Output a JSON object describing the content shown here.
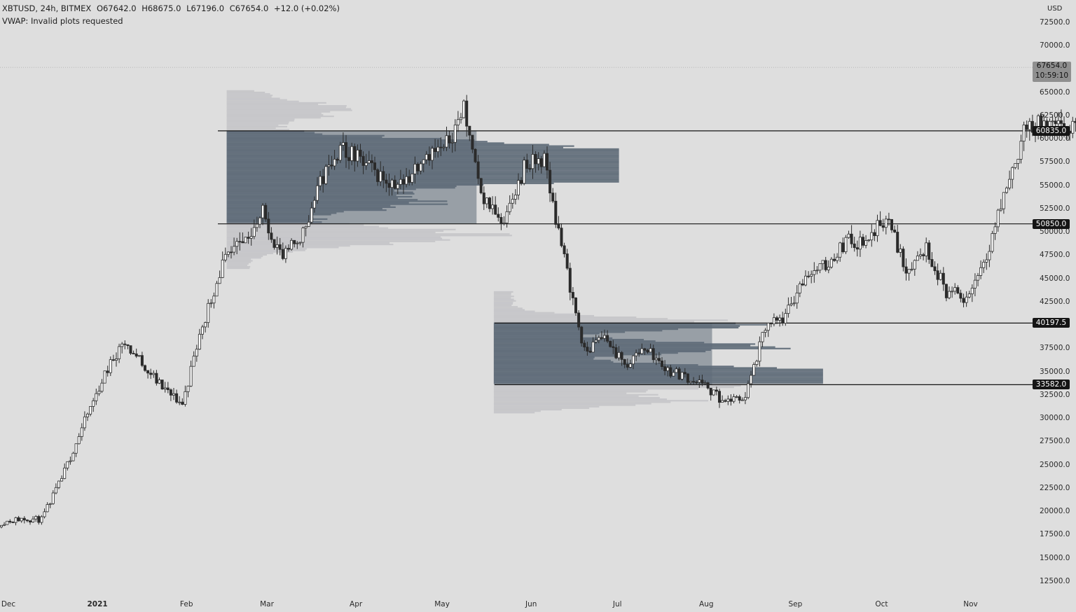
{
  "header": {
    "symbol": "XBTUSD, 24h, BITMEX",
    "open": "O67642.0",
    "high": "H68675.0",
    "low": "L67196.0",
    "close": "C67654.0",
    "change": "+12.0 (+0.02%)",
    "indicator_line": "VWAP: Invalid plots requested"
  },
  "axis": {
    "currency": "USD",
    "y_ticks": [
      "72500.0",
      "70000.0",
      "65000.0",
      "62500.0",
      "60000.0",
      "57500.0",
      "55000.0",
      "52500.0",
      "50000.0",
      "47500.0",
      "45000.0",
      "42500.0",
      "37500.0",
      "35000.0",
      "32500.0",
      "30000.0",
      "27500.0",
      "25000.0",
      "22500.0",
      "20000.0",
      "17500.0",
      "15000.0",
      "12500.0"
    ],
    "x_ticks": [
      {
        "label": "Dec",
        "bold": false
      },
      {
        "label": "2021",
        "bold": true
      },
      {
        "label": "Feb",
        "bold": false
      },
      {
        "label": "Mar",
        "bold": false
      },
      {
        "label": "Apr",
        "bold": false
      },
      {
        "label": "May",
        "bold": false
      },
      {
        "label": "Jun",
        "bold": false
      },
      {
        "label": "Jul",
        "bold": false
      },
      {
        "label": "Aug",
        "bold": false
      },
      {
        "label": "Sep",
        "bold": false
      },
      {
        "label": "Oct",
        "bold": false
      },
      {
        "label": "Nov",
        "bold": false
      }
    ]
  },
  "last_price": {
    "price": "67654.0",
    "countdown": "10:59:10"
  },
  "levels": [
    "60835.0",
    "50850.0",
    "40197.5",
    "33582.0"
  ],
  "colors": {
    "background": "#dedede",
    "candle_up": "#ffffff",
    "candle_down": "#2b2b2b",
    "value_area": "#5f6c78",
    "profile_light": "#c4c4c8",
    "level_line": "#141414",
    "badge": "#151515"
  },
  "chart_data": {
    "type": "candlestick",
    "title": "XBTUSD, 24h, BITMEX",
    "timeframe": "24h",
    "x_range": [
      "2020-12-01",
      "2021-11-09"
    ],
    "ylim": [
      11000,
      75000
    ],
    "closes_weekly": [
      18800,
      19200,
      19100,
      23500,
      28900,
      34000,
      38200,
      36000,
      33200,
      31500,
      40000,
      46500,
      48800,
      52000,
      47000,
      50000,
      56000,
      59000,
      57300,
      55800,
      55000,
      58500,
      58700,
      63200,
      53600,
      50500,
      57000,
      57800,
      47000,
      37000,
      38800,
      35500,
      37700,
      35300,
      34500,
      33400,
      31700,
      32300,
      39700,
      40800,
      45500,
      46300,
      49000,
      48900,
      51700,
      46000,
      48300,
      43600,
      42800,
      47700,
      54900,
      61500,
      61400,
      60800,
      61300,
      63200,
      67654
    ],
    "last_candle": {
      "open": 67642.0,
      "high": 68675.0,
      "low": 67196.0,
      "close": 67654.0
    },
    "horizontal_levels": [
      60835.0,
      50850.0,
      40197.5,
      33582.0
    ],
    "volume_profiles": [
      {
        "from": "2021-02-15",
        "to": "2021-05-13",
        "value_area_high": 60835.0,
        "value_area_low": 50850.0
      },
      {
        "from": "2021-05-19",
        "to": "2021-08-03",
        "value_area_high": 40197.5,
        "value_area_low": 33582.0
      }
    ]
  }
}
